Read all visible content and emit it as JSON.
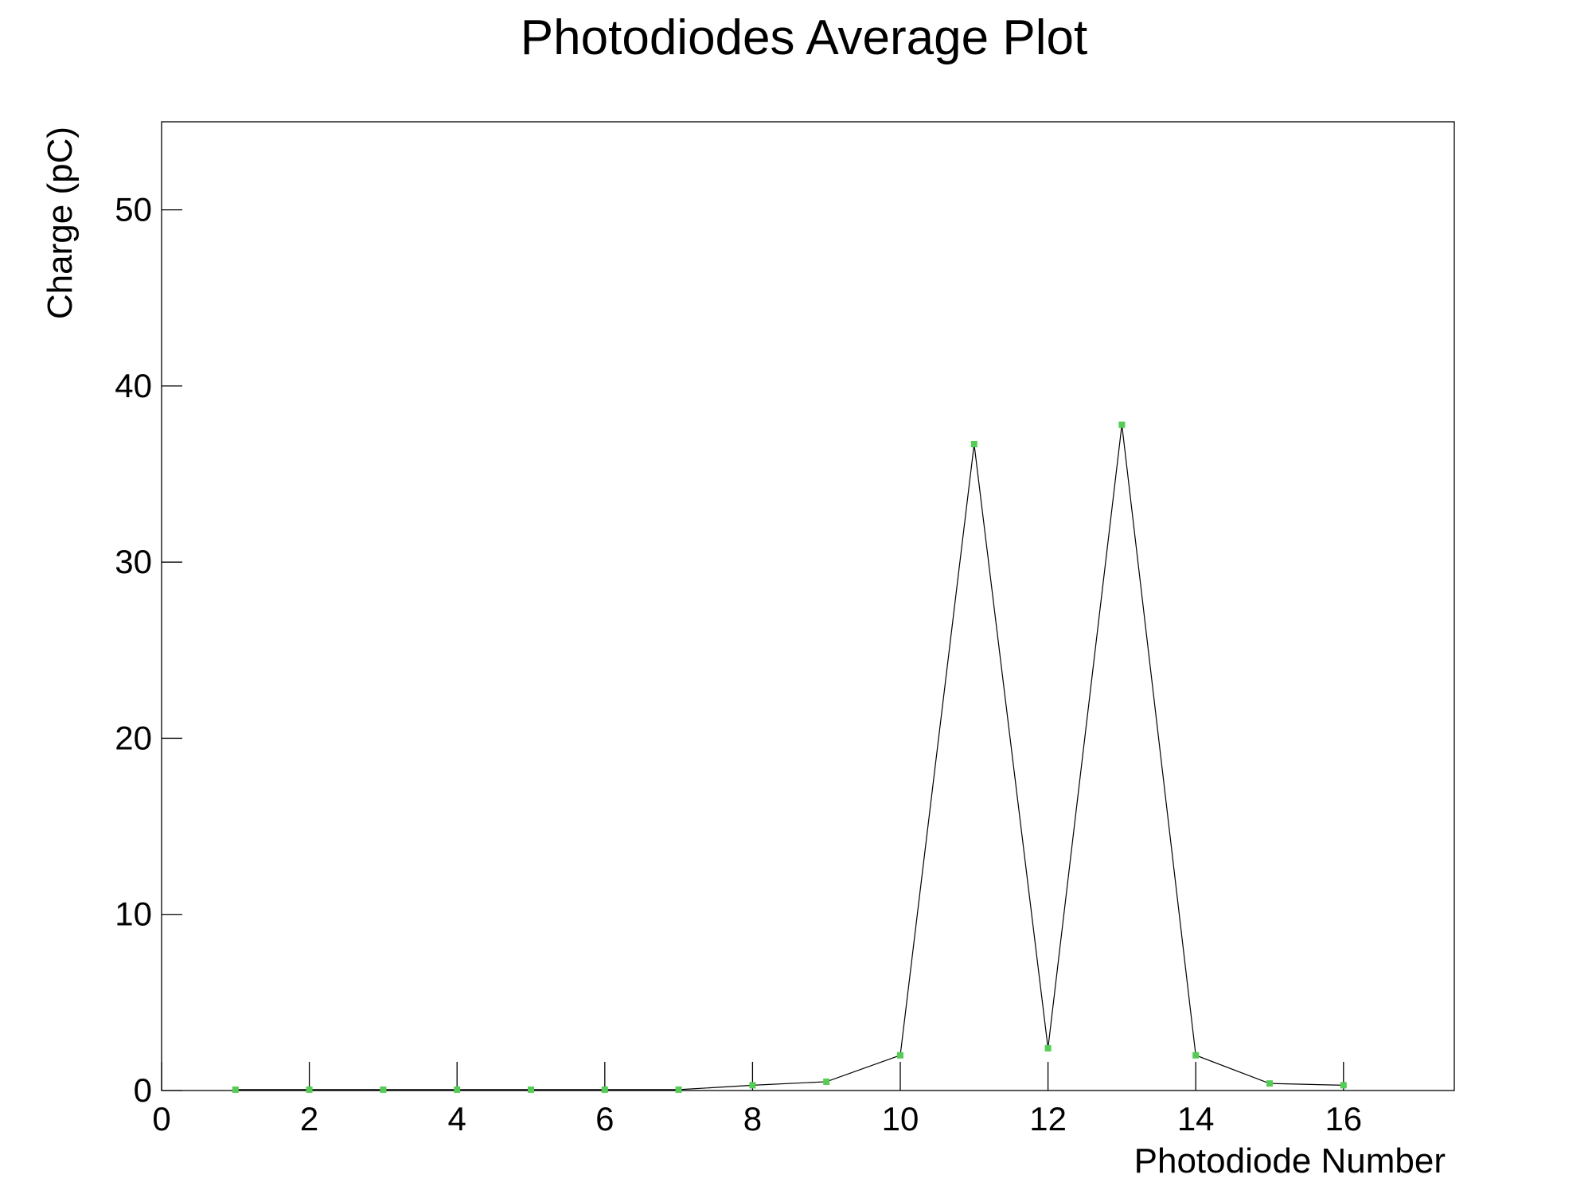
{
  "chart_data": {
    "type": "line",
    "title": "Photodiodes Average Plot",
    "x_label": "Photodiode Number",
    "y_label": "Charge (pC)",
    "x": [
      1,
      2,
      3,
      4,
      5,
      6,
      7,
      8,
      9,
      10,
      11,
      12,
      13,
      14,
      15,
      16
    ],
    "series": [
      {
        "name": "Charge",
        "color": "#55cc55",
        "line_color": "#000000",
        "values": [
          0.05,
          0.05,
          0.05,
          0.05,
          0.05,
          0.05,
          0.05,
          0.3,
          0.5,
          2.0,
          36.7,
          2.4,
          37.8,
          2.0,
          0.4,
          0.3
        ]
      }
    ],
    "xlim": [
      0,
      17.5
    ],
    "xticks": [
      0,
      2,
      4,
      6,
      8,
      10,
      12,
      14,
      16
    ],
    "ylim": [
      0,
      55
    ],
    "yticks": [
      0,
      10,
      20,
      30,
      40,
      50
    ],
    "grid": false
  }
}
